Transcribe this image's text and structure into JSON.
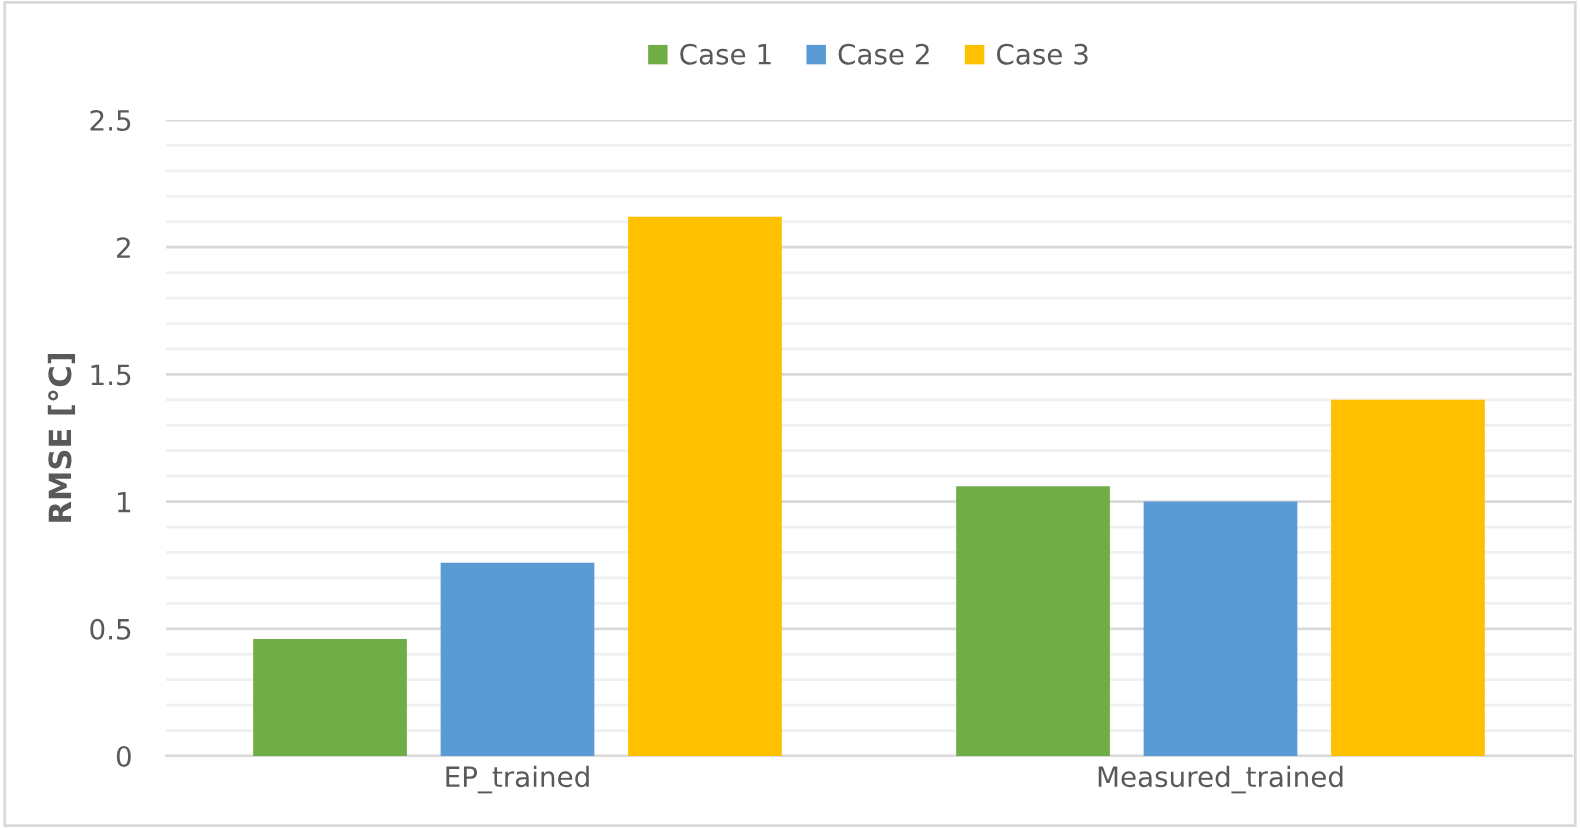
{
  "chart_data": {
    "type": "bar",
    "ylabel": "RMSE [°C]",
    "categories": [
      "EP_trained",
      "Measured_trained"
    ],
    "series": [
      {
        "name": "Case 1",
        "color": "#70ad47",
        "values": [
          0.46,
          1.06
        ]
      },
      {
        "name": "Case 2",
        "color": "#5b9bd5",
        "values": [
          0.76,
          1.0
        ]
      },
      {
        "name": "Case 3",
        "color": "#ffc000",
        "values": [
          2.12,
          1.4
        ]
      }
    ],
    "ylim": [
      0,
      2.5
    ],
    "yticks": [
      0,
      {
        "value": 0.1,
        "label": null
      },
      {
        "value": 0.2,
        "label": null
      },
      {
        "value": 0.3,
        "label": null
      },
      {
        "value": 0.4,
        "label": null
      },
      0.5,
      {
        "value": 0.6,
        "label": null
      },
      {
        "value": 0.7,
        "label": null
      },
      {
        "value": 0.8,
        "label": null
      },
      {
        "value": 0.9,
        "label": null
      },
      1,
      {
        "value": 1.1,
        "label": null
      },
      {
        "value": 1.2,
        "label": null
      },
      {
        "value": 1.3,
        "label": null
      },
      {
        "value": 1.4,
        "label": null
      },
      1.5,
      {
        "value": 1.6,
        "label": null
      },
      {
        "value": 1.7,
        "label": null
      },
      {
        "value": 1.8,
        "label": null
      },
      {
        "value": 1.9,
        "label": null
      },
      2,
      {
        "value": 2.1,
        "label": null
      },
      {
        "value": 2.2,
        "label": null
      },
      {
        "value": 2.3,
        "label": null
      },
      {
        "value": 2.4,
        "label": null
      },
      2.5
    ],
    "grid": "y",
    "legend": "top"
  }
}
